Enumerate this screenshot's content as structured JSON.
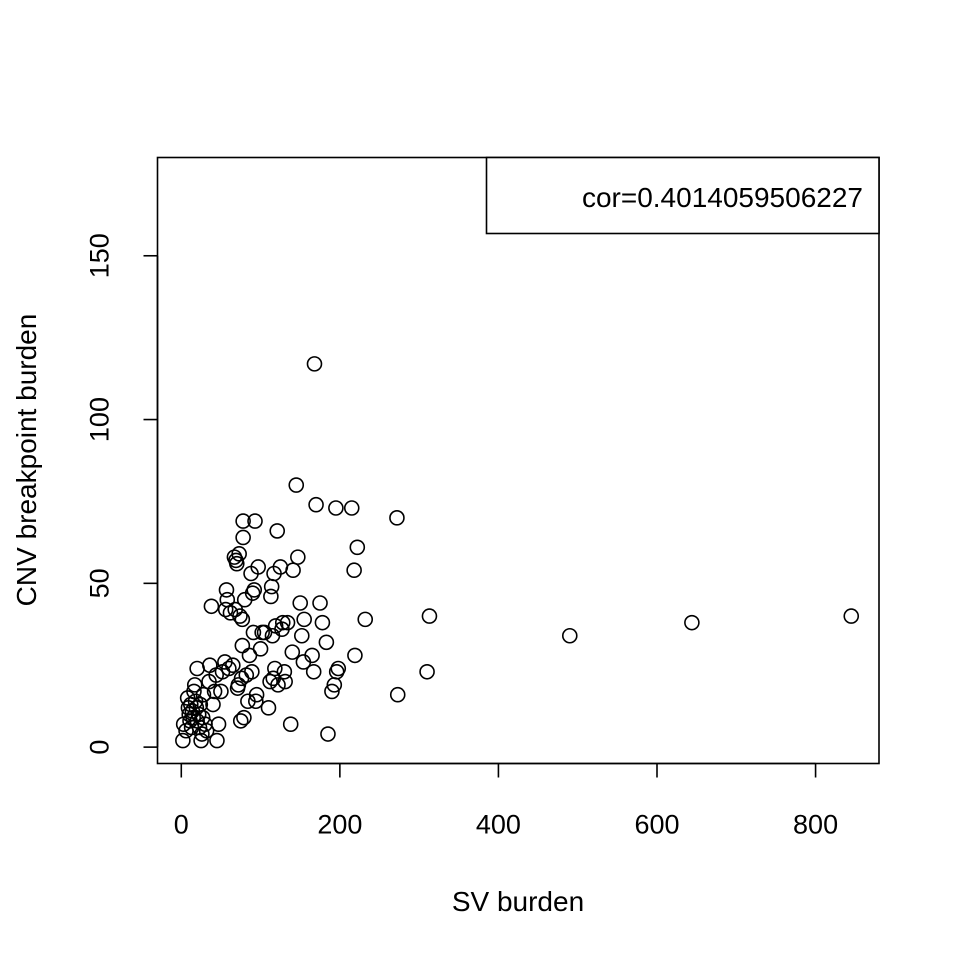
{
  "chart_data": {
    "type": "scatter",
    "title": "",
    "xlabel": "SV burden",
    "ylabel": "CNV breakpoint burden",
    "xlim": [
      -30,
      880
    ],
    "ylim": [
      -5,
      180
    ],
    "x_ticks": [
      0,
      200,
      400,
      600,
      800
    ],
    "y_ticks": [
      0,
      50,
      100,
      150
    ],
    "x_tick_labels": [
      "0",
      "200",
      "400",
      "600",
      "800"
    ],
    "y_tick_labels": [
      "0",
      "50",
      "100",
      "150"
    ],
    "grid": false,
    "legend": {
      "position": "top-right",
      "text": "cor=0.4014059506227"
    },
    "points": [
      [
        2,
        2
      ],
      [
        3,
        7
      ],
      [
        6,
        5
      ],
      [
        8,
        15
      ],
      [
        9,
        12
      ],
      [
        10,
        10
      ],
      [
        11,
        8
      ],
      [
        12,
        13
      ],
      [
        13,
        6
      ],
      [
        14,
        11
      ],
      [
        15,
        9
      ],
      [
        16,
        17
      ],
      [
        17,
        19
      ],
      [
        18,
        14
      ],
      [
        19,
        12
      ],
      [
        20,
        8
      ],
      [
        20,
        24
      ],
      [
        22,
        10
      ],
      [
        23,
        6
      ],
      [
        24,
        13
      ],
      [
        25,
        2
      ],
      [
        26,
        4
      ],
      [
        27,
        9
      ],
      [
        28,
        16
      ],
      [
        30,
        7
      ],
      [
        32,
        5
      ],
      [
        35,
        20
      ],
      [
        36,
        25
      ],
      [
        38,
        43
      ],
      [
        40,
        13
      ],
      [
        42,
        17
      ],
      [
        44,
        22
      ],
      [
        45,
        2
      ],
      [
        47,
        7
      ],
      [
        50,
        17
      ],
      [
        52,
        23
      ],
      [
        55,
        26
      ],
      [
        56,
        42
      ],
      [
        57,
        48
      ],
      [
        58,
        45
      ],
      [
        60,
        24
      ],
      [
        62,
        41
      ],
      [
        65,
        25
      ],
      [
        67,
        58
      ],
      [
        68,
        42
      ],
      [
        69,
        57
      ],
      [
        70,
        56
      ],
      [
        71,
        18
      ],
      [
        72,
        19
      ],
      [
        73,
        59
      ],
      [
        74,
        40
      ],
      [
        75,
        8
      ],
      [
        76,
        21
      ],
      [
        77,
        31
      ],
      [
        77,
        39
      ],
      [
        78,
        64
      ],
      [
        78,
        69
      ],
      [
        79,
        9
      ],
      [
        80,
        45
      ],
      [
        82,
        22
      ],
      [
        84,
        14
      ],
      [
        86,
        28
      ],
      [
        88,
        53
      ],
      [
        89,
        23
      ],
      [
        90,
        47
      ],
      [
        91,
        35
      ],
      [
        92,
        48
      ],
      [
        93,
        69
      ],
      [
        94,
        14
      ],
      [
        95,
        16
      ],
      [
        97,
        55
      ],
      [
        100,
        30
      ],
      [
        102,
        35
      ],
      [
        105,
        35
      ],
      [
        110,
        12
      ],
      [
        112,
        20
      ],
      [
        113,
        46
      ],
      [
        114,
        49
      ],
      [
        115,
        34
      ],
      [
        116,
        21
      ],
      [
        117,
        53
      ],
      [
        118,
        24
      ],
      [
        119,
        37
      ],
      [
        121,
        66
      ],
      [
        122,
        19
      ],
      [
        125,
        55
      ],
      [
        127,
        36
      ],
      [
        128,
        38
      ],
      [
        130,
        23
      ],
      [
        131,
        20
      ],
      [
        134,
        38
      ],
      [
        138,
        7
      ],
      [
        140,
        29
      ],
      [
        141,
        54
      ],
      [
        145,
        80
      ],
      [
        147,
        58
      ],
      [
        150,
        44
      ],
      [
        152,
        34
      ],
      [
        154,
        26
      ],
      [
        155,
        39
      ],
      [
        165,
        28
      ],
      [
        167,
        23
      ],
      [
        168,
        117
      ],
      [
        170,
        74
      ],
      [
        175,
        44
      ],
      [
        178,
        38
      ],
      [
        183,
        32
      ],
      [
        185,
        4
      ],
      [
        190,
        17
      ],
      [
        193,
        19
      ],
      [
        195,
        73
      ],
      [
        196,
        23
      ],
      [
        198,
        24
      ],
      [
        215,
        73
      ],
      [
        218,
        54
      ],
      [
        219,
        28
      ],
      [
        222,
        61
      ],
      [
        232,
        39
      ],
      [
        272,
        70
      ],
      [
        273,
        16
      ],
      [
        310,
        23
      ],
      [
        313,
        40
      ],
      [
        490,
        34
      ],
      [
        644,
        38
      ],
      [
        845,
        40
      ]
    ]
  }
}
